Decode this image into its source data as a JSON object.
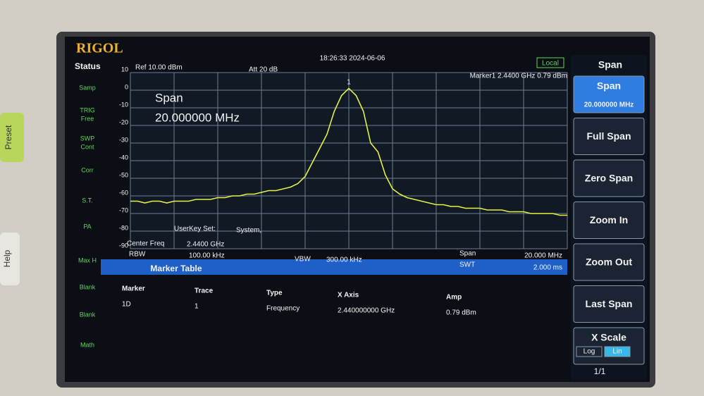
{
  "brand": "RIGOL",
  "status": {
    "title": "Status",
    "items": [
      "Samp",
      "TRIG",
      "Free",
      "SWP",
      "Cont",
      "Corr",
      "S.T.",
      "PA",
      "Max H",
      "Blank",
      "Blank",
      "Math"
    ]
  },
  "header": {
    "ref": "Ref 10.00 dBm",
    "att": "Att 20 dB",
    "datetime": "18:26:33 2024-06-06",
    "mode": "Local",
    "marker": "Marker1  2.4400 GHz  0.79 dBm"
  },
  "overlay": {
    "label": "Span",
    "value": "20.000000 MHz",
    "userkey": "UserKey Set:",
    "userkey_value": "System,",
    "marker_id": "1"
  },
  "chart_data": {
    "type": "line",
    "color": "#e4f046",
    "ylim": [
      -90,
      10
    ],
    "yticks": [
      10,
      0,
      -10,
      -20,
      -30,
      -40,
      -50,
      -60,
      -70,
      -80,
      -90
    ],
    "grid": true,
    "values": [
      -63,
      -63,
      -64,
      -63,
      -63,
      -64,
      -63,
      -63,
      -63,
      -62,
      -62,
      -62,
      -61,
      -61,
      -60,
      -60,
      -59,
      -59,
      -58,
      -57,
      -57,
      -56,
      -55,
      -53,
      -49,
      -41,
      -33,
      -25,
      -12,
      -3,
      1,
      -3,
      -12,
      -30,
      -35,
      -48,
      -56,
      -59,
      -61,
      -62,
      -63,
      -64,
      -65,
      -65,
      -66,
      -66,
      -67,
      -67,
      -67,
      -68,
      -68,
      -68,
      -69,
      -69,
      -69,
      -70,
      -70,
      -70,
      -70,
      -71,
      -71
    ]
  },
  "info": {
    "center_label": "Center Freq",
    "center_value": "2.4400 GHz",
    "rbw_label": "RBW",
    "rbw_value": "100.00 kHz",
    "vbw_label": "VBW",
    "vbw_value": "300.00 kHz",
    "span_label": "Span",
    "span_value": "20.000 MHz",
    "swt_label": "SWT",
    "swt_value": "2.000 ms"
  },
  "marker_table": {
    "title": "Marker Table",
    "headers": [
      "Marker",
      "Trace",
      "Type",
      "X Axis",
      "Amp"
    ],
    "rows": [
      [
        "1D",
        "1",
        "Frequency",
        "2.440000000 GHz",
        "0.79 dBm"
      ]
    ]
  },
  "menu": {
    "title": "Span",
    "buttons": [
      "Span",
      "Full Span",
      "Zero Span",
      "Zoom In",
      "Zoom Out",
      "Last Span",
      "X Scale"
    ],
    "span_value": "20.000000 MHz",
    "scale_options": [
      "Log",
      "Lin"
    ],
    "page": "1/1"
  },
  "bezel": {
    "preset": "Preset",
    "help": "Help"
  }
}
